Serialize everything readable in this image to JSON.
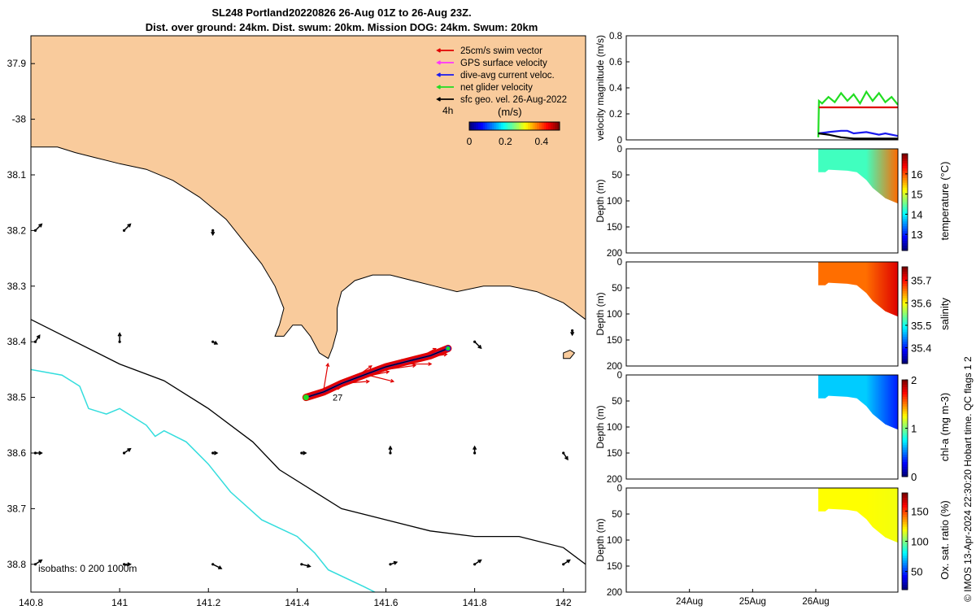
{
  "header": {
    "title_line1": "SL248 Portland20220826 26-Aug 01Z to 26-Aug 23Z.",
    "title_line2": "Dist. over ground: 24km. Dist. swum: 20km. Mission DOG: 24km. Swum: 20km"
  },
  "footer_stamp": "© IMOS 13-Apr-2024 22:30:20 Hobart time. QC flags 1  2",
  "colors": {
    "land": "#f9cb9c",
    "isobath_200": "#000000",
    "isobath_1000": "#33dddd",
    "swim": "#e00000",
    "gps": "#ff33ff",
    "dive_avg": "#1a1aee",
    "net": "#22dd22",
    "geo": "#000000"
  },
  "chart_data": [
    {
      "type": "map",
      "xlim": [
        140.8,
        142.05
      ],
      "ylim": [
        -38.85,
        -37.85
      ],
      "x_ticks": [
        140.8,
        141,
        141.2,
        141.4,
        141.6,
        141.8,
        142
      ],
      "x_tick_labels": [
        "140.8",
        "141",
        "141.2",
        "141.4",
        "141.6",
        "141.8",
        "142"
      ],
      "y_ticks": [
        -37.9,
        -38,
        -38.1,
        -38.2,
        -38.3,
        -38.4,
        -38.5,
        -38.6,
        -38.7,
        -38.8
      ],
      "y_tick_labels": [
        "37.9",
        "-38",
        "38.1",
        "38.2",
        "38.3",
        "38.4",
        "38.5",
        "38.6",
        "38.7",
        "38.8"
      ],
      "isobaths_label": "isobaths: 0   200  1000m",
      "legend": {
        "items": [
          {
            "label": "25cm/s swim vector",
            "color": "#e00000"
          },
          {
            "label": "GPS surface velocity",
            "color": "#ff33ff"
          },
          {
            "label": "dive-avg current veloc.",
            "color": "#1a1aee"
          },
          {
            "label": "net glider velocity",
            "color": "#22dd22"
          },
          {
            "label": "sfc geo. vel. 26-Aug-2022",
            "color": "#000000"
          }
        ],
        "interval_label": "4h",
        "colorbar_title": "(m/s)",
        "colorbar_ticks": [
          "0",
          "0.2",
          "0.4"
        ],
        "colorbar_range": [
          0,
          0.5
        ]
      },
      "coastline": [
        [
          140.8,
          -38.05
        ],
        [
          140.86,
          -38.05
        ],
        [
          140.9,
          -38.06
        ],
        [
          140.95,
          -38.07
        ],
        [
          141.0,
          -38.08
        ],
        [
          141.06,
          -38.09
        ],
        [
          141.12,
          -38.11
        ],
        [
          141.18,
          -38.14
        ],
        [
          141.24,
          -38.18
        ],
        [
          141.28,
          -38.22
        ],
        [
          141.32,
          -38.26
        ],
        [
          141.35,
          -38.3
        ],
        [
          141.37,
          -38.34
        ],
        [
          141.36,
          -38.37
        ],
        [
          141.35,
          -38.39
        ],
        [
          141.37,
          -38.39
        ],
        [
          141.39,
          -38.37
        ],
        [
          141.41,
          -38.37
        ],
        [
          141.43,
          -38.39
        ],
        [
          141.45,
          -38.42
        ],
        [
          141.47,
          -38.43
        ],
        [
          141.48,
          -38.41
        ],
        [
          141.49,
          -38.38
        ],
        [
          141.49,
          -38.34
        ],
        [
          141.5,
          -38.31
        ],
        [
          141.53,
          -38.29
        ],
        [
          141.57,
          -38.28
        ],
        [
          141.61,
          -38.28
        ],
        [
          141.66,
          -38.29
        ],
        [
          141.71,
          -38.3
        ],
        [
          141.76,
          -38.31
        ],
        [
          141.82,
          -38.3
        ],
        [
          141.88,
          -38.3
        ],
        [
          141.94,
          -38.31
        ],
        [
          142.0,
          -38.33
        ],
        [
          142.05,
          -38.36
        ]
      ],
      "island": [
        [
          142.0,
          -38.42
        ],
        [
          142.015,
          -38.415
        ],
        [
          142.025,
          -38.42
        ],
        [
          142.015,
          -38.43
        ],
        [
          142.0,
          -38.43
        ]
      ],
      "isobath_200": [
        [
          140.8,
          -38.36
        ],
        [
          141.0,
          -38.44
        ],
        [
          141.1,
          -38.47
        ],
        [
          141.2,
          -38.52
        ],
        [
          141.3,
          -38.58
        ],
        [
          141.36,
          -38.63
        ],
        [
          141.44,
          -38.67
        ],
        [
          141.5,
          -38.7
        ],
        [
          141.6,
          -38.72
        ],
        [
          141.7,
          -38.74
        ],
        [
          141.8,
          -38.75
        ],
        [
          141.9,
          -38.75
        ],
        [
          142.0,
          -38.77
        ],
        [
          142.05,
          -38.8
        ]
      ],
      "isobath_1000": [
        [
          140.8,
          -38.45
        ],
        [
          140.87,
          -38.46
        ],
        [
          140.91,
          -38.48
        ],
        [
          140.93,
          -38.52
        ],
        [
          140.97,
          -38.53
        ],
        [
          141.0,
          -38.52
        ],
        [
          141.06,
          -38.55
        ],
        [
          141.08,
          -38.57
        ],
        [
          141.1,
          -38.56
        ],
        [
          141.15,
          -38.58
        ],
        [
          141.2,
          -38.62
        ],
        [
          141.25,
          -38.67
        ],
        [
          141.32,
          -38.72
        ],
        [
          141.4,
          -38.75
        ],
        [
          141.44,
          -38.78
        ],
        [
          141.47,
          -38.81
        ],
        [
          141.55,
          -38.84
        ],
        [
          141.6,
          -38.86
        ]
      ],
      "geo_vectors": [
        {
          "lon": 140.81,
          "lat": -38.2,
          "u": 0.03,
          "v": 0.03
        },
        {
          "lon": 141.01,
          "lat": -38.2,
          "u": 0.03,
          "v": 0.03
        },
        {
          "lon": 141.21,
          "lat": -38.2,
          "u": 0.0,
          "v": -0.02
        },
        {
          "lon": 140.81,
          "lat": -38.4,
          "u": 0.02,
          "v": 0.03
        },
        {
          "lon": 141.0,
          "lat": -38.4,
          "u": 0.0,
          "v": 0.04
        },
        {
          "lon": 141.21,
          "lat": -38.4,
          "u": 0.02,
          "v": -0.01
        },
        {
          "lon": 141.8,
          "lat": -38.4,
          "u": 0.03,
          "v": -0.03
        },
        {
          "lon": 142.02,
          "lat": -38.38,
          "u": 0.0,
          "v": -0.02
        },
        {
          "lon": 140.81,
          "lat": -38.6,
          "u": 0.03,
          "v": 0.0
        },
        {
          "lon": 141.01,
          "lat": -38.6,
          "u": 0.03,
          "v": 0.02
        },
        {
          "lon": 141.21,
          "lat": -38.6,
          "u": 0.02,
          "v": 0.0
        },
        {
          "lon": 141.41,
          "lat": -38.6,
          "u": 0.02,
          "v": 0.0
        },
        {
          "lon": 141.61,
          "lat": -38.6,
          "u": 0.0,
          "v": 0.03
        },
        {
          "lon": 141.8,
          "lat": -38.6,
          "u": 0.0,
          "v": 0.03
        },
        {
          "lon": 142.0,
          "lat": -38.6,
          "u": 0.02,
          "v": -0.03
        },
        {
          "lon": 140.81,
          "lat": -38.8,
          "u": 0.03,
          "v": 0.02
        },
        {
          "lon": 141.01,
          "lat": -38.8,
          "u": 0.03,
          "v": 0.0
        },
        {
          "lon": 141.21,
          "lat": -38.8,
          "u": 0.04,
          "v": -0.02
        },
        {
          "lon": 141.41,
          "lat": -38.8,
          "u": 0.04,
          "v": -0.01
        },
        {
          "lon": 141.61,
          "lat": -38.8,
          "u": 0.03,
          "v": 0.01
        },
        {
          "lon": 141.8,
          "lat": -38.8,
          "u": 0.03,
          "v": 0.02
        },
        {
          "lon": 142.0,
          "lat": -38.8,
          "u": 0.03,
          "v": 0.02
        }
      ],
      "track": [
        [
          141.42,
          -38.5
        ],
        [
          141.46,
          -38.49
        ],
        [
          141.5,
          -38.475
        ],
        [
          141.55,
          -38.46
        ],
        [
          141.6,
          -38.445
        ],
        [
          141.65,
          -38.435
        ],
        [
          141.7,
          -38.425
        ],
        [
          141.74,
          -38.412
        ]
      ],
      "track_label": "27",
      "swim_vectors": [
        {
          "lon": 141.44,
          "lat": -38.49,
          "u": 0.12,
          "v": 0.02
        },
        {
          "lon": 141.46,
          "lat": -38.485,
          "u": 0.02,
          "v": 0.12
        },
        {
          "lon": 141.48,
          "lat": -38.48,
          "u": 0.12,
          "v": 0.05
        },
        {
          "lon": 141.5,
          "lat": -38.475,
          "u": 0.13,
          "v": 0.01
        },
        {
          "lon": 141.52,
          "lat": -38.47,
          "u": 0.1,
          "v": 0.07
        },
        {
          "lon": 141.54,
          "lat": -38.465,
          "u": 0.14,
          "v": 0.03
        },
        {
          "lon": 141.56,
          "lat": -38.46,
          "u": 0.12,
          "v": -0.03
        },
        {
          "lon": 141.58,
          "lat": -38.455,
          "u": 0.13,
          "v": 0.06
        },
        {
          "lon": 141.6,
          "lat": -38.45,
          "u": 0.14,
          "v": 0.02
        },
        {
          "lon": 141.62,
          "lat": -38.445,
          "u": 0.12,
          "v": 0.05
        },
        {
          "lon": 141.64,
          "lat": -38.44,
          "u": 0.13,
          "v": 0.0
        },
        {
          "lon": 141.66,
          "lat": -38.435,
          "u": 0.11,
          "v": 0.06
        },
        {
          "lon": 141.68,
          "lat": -38.43,
          "u": 0.12,
          "v": 0.02
        }
      ]
    },
    {
      "type": "line",
      "ylabel": "velocity magnitude (m/s)",
      "ylim": [
        0,
        0.8
      ],
      "y_ticks": [
        0,
        0.2,
        0.4,
        0.6,
        0.8
      ],
      "y_tick_labels": [
        "0",
        "0.2",
        "0.4",
        "0.6",
        "0.8"
      ],
      "xlim": [
        0,
        4.3
      ],
      "series": [
        {
          "color": "#22dd22",
          "x": [
            3.04,
            3.05,
            3.1,
            3.2,
            3.3,
            3.4,
            3.5,
            3.6,
            3.7,
            3.8,
            3.9,
            4.0,
            4.1,
            4.2,
            4.3
          ],
          "y": [
            0.02,
            0.3,
            0.28,
            0.33,
            0.29,
            0.36,
            0.3,
            0.35,
            0.28,
            0.37,
            0.3,
            0.36,
            0.29,
            0.33,
            0.27
          ]
        },
        {
          "color": "#e00000",
          "x": [
            3.05,
            3.3,
            3.6,
            3.9,
            4.3
          ],
          "y": [
            0.25,
            0.25,
            0.25,
            0.25,
            0.25
          ]
        },
        {
          "color": "#1a1aee",
          "x": [
            3.04,
            3.2,
            3.4,
            3.5,
            3.6,
            3.8,
            4.0,
            4.1,
            4.3
          ],
          "y": [
            0.05,
            0.06,
            0.07,
            0.07,
            0.05,
            0.06,
            0.04,
            0.05,
            0.03
          ]
        },
        {
          "color": "#000000",
          "x": [
            3.04,
            3.2,
            3.4,
            3.6,
            3.8,
            4.0,
            4.3
          ],
          "y": [
            0.05,
            0.04,
            0.02,
            0.01,
            0.01,
            0.01,
            0.01
          ]
        }
      ]
    },
    {
      "type": "section",
      "ylabel": "Depth (m)",
      "ylim": [
        0,
        200
      ],
      "y_ticks": [
        0,
        50,
        100,
        150,
        200
      ],
      "y_tick_labels": [
        "0",
        "50",
        "100",
        "150",
        "200"
      ],
      "colorbar_label": "temperature (°C)",
      "colorbar_ticks": [
        13,
        14,
        15,
        16
      ],
      "colorbar_tick_labels": [
        "13",
        "14",
        "15",
        "16"
      ],
      "clim": [
        12.2,
        17
      ],
      "value": 14.3,
      "deep_value": 15.9,
      "bottom_profile": [
        [
          3.04,
          45
        ],
        [
          3.15,
          45
        ],
        [
          3.2,
          40
        ],
        [
          3.5,
          42
        ],
        [
          3.65,
          45
        ],
        [
          3.8,
          60
        ],
        [
          3.9,
          75
        ],
        [
          4.0,
          85
        ],
        [
          4.1,
          95
        ],
        [
          4.2,
          100
        ],
        [
          4.3,
          105
        ]
      ]
    },
    {
      "type": "section",
      "ylabel": "Depth (m)",
      "ylim": [
        0,
        200
      ],
      "y_ticks": [
        0,
        50,
        100,
        150,
        200
      ],
      "y_tick_labels": [
        "0",
        "50",
        "100",
        "150",
        "200"
      ],
      "colorbar_label": "salinity",
      "colorbar_ticks": [
        35.4,
        35.5,
        35.6,
        35.7
      ],
      "colorbar_tick_labels": [
        "35.4",
        "35.5",
        "35.6",
        "35.7"
      ],
      "clim": [
        35.33,
        35.76
      ],
      "value": 35.66,
      "deep_value": 35.72,
      "bottom_profile": [
        [
          3.04,
          45
        ],
        [
          3.15,
          45
        ],
        [
          3.2,
          40
        ],
        [
          3.5,
          42
        ],
        [
          3.65,
          45
        ],
        [
          3.8,
          60
        ],
        [
          3.9,
          75
        ],
        [
          4.0,
          85
        ],
        [
          4.1,
          95
        ],
        [
          4.2,
          100
        ],
        [
          4.3,
          105
        ]
      ]
    },
    {
      "type": "section",
      "ylabel": "Depth (m)",
      "ylim": [
        0,
        200
      ],
      "y_ticks": [
        0,
        50,
        100,
        150,
        200
      ],
      "y_tick_labels": [
        "0",
        "50",
        "100",
        "150",
        "200"
      ],
      "colorbar_label": "chl-a (mg m-3)",
      "colorbar_ticks": [
        0,
        1,
        2
      ],
      "colorbar_tick_labels": [
        "0",
        "1",
        "2"
      ],
      "clim": [
        0,
        2
      ],
      "value": 0.65,
      "deep_value": 0.3,
      "bottom_profile": [
        [
          3.04,
          45
        ],
        [
          3.15,
          45
        ],
        [
          3.2,
          40
        ],
        [
          3.5,
          42
        ],
        [
          3.65,
          45
        ],
        [
          3.8,
          60
        ],
        [
          3.9,
          75
        ],
        [
          4.0,
          85
        ],
        [
          4.1,
          95
        ],
        [
          4.2,
          100
        ],
        [
          4.3,
          105
        ]
      ]
    },
    {
      "type": "section",
      "ylabel": "Depth (m)",
      "ylim": [
        0,
        200
      ],
      "y_ticks": [
        0,
        50,
        100,
        150,
        200
      ],
      "y_tick_labels": [
        "0",
        "50",
        "100",
        "150",
        "200"
      ],
      "colorbar_label": "Ox. sat. ratio (%)",
      "colorbar_ticks": [
        50,
        100,
        150
      ],
      "colorbar_tick_labels": [
        "50",
        "100",
        "150"
      ],
      "clim": [
        20,
        180
      ],
      "value": 120,
      "deep_value": 118,
      "bottom_profile": [
        [
          3.04,
          45
        ],
        [
          3.15,
          45
        ],
        [
          3.2,
          40
        ],
        [
          3.5,
          42
        ],
        [
          3.65,
          45
        ],
        [
          3.8,
          60
        ],
        [
          3.9,
          75
        ],
        [
          4.0,
          85
        ],
        [
          4.1,
          95
        ],
        [
          4.2,
          100
        ],
        [
          4.3,
          105
        ]
      ],
      "x_ticks": [
        1,
        2,
        3
      ],
      "x_tick_labels": [
        "24Aug",
        "25Aug",
        "26Aug"
      ]
    }
  ]
}
